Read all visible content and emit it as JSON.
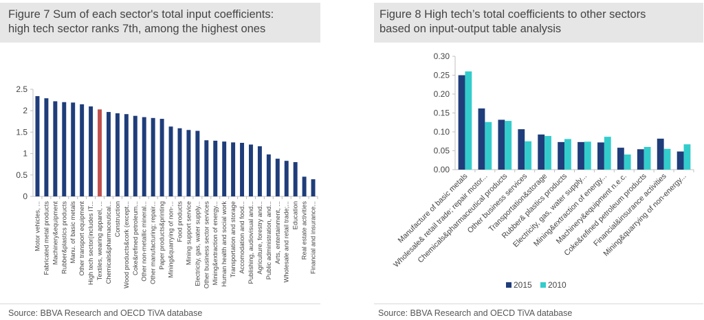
{
  "left": {
    "title_line1": "Figure 7 Sum of each sector's total input coefficients:",
    "title_line2": "high tech sector ranks 7th, among the highest ones",
    "source": "Source: BBVA Research and OECD TiVA database"
  },
  "right": {
    "title_line1": "Figure 8 High tech’s total coefficients to other sectors",
    "title_line2": "based on input-output table analysis",
    "source": "Source: BBVA Research and OECD TiVA database"
  },
  "colors": {
    "navy": "#1f3d7a",
    "highlight": "#c0504d",
    "teal": "#33cccc",
    "title_bg": "#e6e6e6"
  },
  "chart_data": [
    {
      "type": "bar",
      "title": "Figure 7 Sum of each sector's total input coefficients: high tech sector ranks 7th, among the highest ones",
      "xlabel": "",
      "ylabel": "",
      "ylim": [
        0,
        2.5
      ],
      "yticks": [
        "0",
        "0.5",
        "1",
        "1.5",
        "2",
        "2.5"
      ],
      "highlight_index": 7,
      "categories": [
        "Motor vehicles, ...",
        "Fabricated metal products",
        "Machinery&equipment",
        "Rubber&plastics products",
        "Manu. of basic metals",
        "Other transport equipment",
        "High tech sector(includes IT...",
        "Textiles, wearing apparel, ...",
        "Chemicals&pharmaceutical...",
        "Construction",
        "Wood products&cork (except...",
        "Coke&refined petroleum...",
        "Other non-metallic mineral...",
        "Other manufacturing; repair...",
        "Paper products&printing",
        "Mining&quarrying of non-...",
        "Food products",
        "Mining support service",
        "Electricity, gas, water supply...",
        "Other business sector services",
        "Mining&extraction of energy...",
        "Human health and social work",
        "Transportation and storage",
        "Accomodation and food...",
        "Publishing, audiovisual and...",
        "Agriculture, forestry and...",
        "Public administration, and...",
        "Arts, entertainment, ...",
        "Wholesale and retail trade;...",
        "Education",
        "Real estate activities",
        "Financial and insurance..."
      ],
      "values": [
        2.34,
        2.29,
        2.22,
        2.2,
        2.19,
        2.15,
        2.1,
        2.03,
        1.97,
        1.94,
        1.92,
        1.88,
        1.85,
        1.83,
        1.81,
        1.63,
        1.59,
        1.55,
        1.53,
        1.31,
        1.3,
        1.28,
        1.26,
        1.25,
        1.21,
        1.17,
        0.98,
        0.88,
        0.83,
        0.8,
        0.46,
        0.4
      ]
    },
    {
      "type": "bar",
      "title": "Figure 8 High tech’s total coefficients to other sectors based on input-output table analysis",
      "xlabel": "",
      "ylabel": "",
      "ylim": [
        0,
        0.3
      ],
      "yticks": [
        "0.00",
        "0.05",
        "0.10",
        "0.15",
        "0.20",
        "0.25",
        "0.30"
      ],
      "legend_position": "bottom",
      "categories": [
        "Manufacture of basic metals",
        "Wholesale& retail trade; repair motor...",
        "Chemicals&pharmaceutical products",
        "Other business services",
        "Transportation&storage",
        "Rubber& plastics products",
        "Electricity, gas, water supply...",
        "Mining&extraction of energy...",
        "Machinery&equipment n.e.c.",
        "Coke&refined petroleum products",
        "Financial&insurance activities",
        "Mining&quarrying of non-energy..."
      ],
      "series": [
        {
          "name": "2015",
          "values": [
            0.25,
            0.162,
            0.132,
            0.107,
            0.093,
            0.073,
            0.073,
            0.072,
            0.058,
            0.054,
            0.082,
            0.048
          ]
        },
        {
          "name": "2010",
          "values": [
            0.26,
            0.126,
            0.129,
            0.075,
            0.089,
            0.081,
            0.074,
            0.087,
            0.04,
            0.06,
            0.055,
            0.067
          ]
        }
      ]
    }
  ]
}
